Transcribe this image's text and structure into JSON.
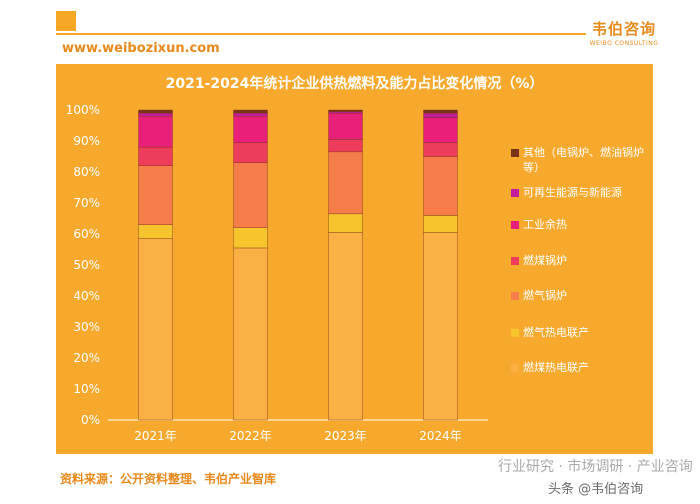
{
  "header": {
    "brand_cn": "韦伯咨询",
    "brand_en": "WEIBO CONSULTING",
    "website": "www.weibozixun.com"
  },
  "footer": {
    "source": "资料来源：公开资料整理、韦伯产业智库",
    "watermark_line1": "行业研究 · 市场调研 · 产业咨询",
    "watermark_line2": "头条 @韦伯咨询"
  },
  "colors": {
    "accent": "#f5a623",
    "panel": "#f7a92e",
    "brand": "#e8891b"
  },
  "chart_data": {
    "type": "bar",
    "stacked": true,
    "title": "2021-2024年统计企业供热燃料及能力占比变化情况（%）",
    "categories": [
      "2021年",
      "2022年",
      "2023年",
      "2024年"
    ],
    "ylim": [
      0,
      100
    ],
    "yticks": [
      "0%",
      "10%",
      "20%",
      "30%",
      "40%",
      "50%",
      "60%",
      "70%",
      "80%",
      "90%",
      "100%"
    ],
    "grid": false,
    "legend_position": "right",
    "series": [
      {
        "name": "燃煤热电联产",
        "values": [
          58.5,
          55.5,
          60.5,
          60.5
        ],
        "color": "#fbb046"
      },
      {
        "name": "燃气热电联产",
        "values": [
          4.5,
          6.5,
          6.0,
          5.5
        ],
        "color": "#f6c42d"
      },
      {
        "name": "燃气锅炉",
        "values": [
          19.0,
          21.0,
          20.0,
          19.0
        ],
        "color": "#f47d4a"
      },
      {
        "name": "燃煤锅炉",
        "values": [
          6.0,
          6.5,
          4.0,
          4.5
        ],
        "color": "#ee3d5c"
      },
      {
        "name": "工业余热",
        "values": [
          10.0,
          8.5,
          8.5,
          8.0
        ],
        "color": "#e8207a"
      },
      {
        "name": "可再生能源与新能源",
        "values": [
          1.0,
          1.0,
          0.5,
          1.5
        ],
        "color": "#c21e9a"
      },
      {
        "name": "其他（电锅炉、燃油锅炉等）",
        "values": [
          1.0,
          1.0,
          0.5,
          1.0
        ],
        "color": "#7a3516"
      }
    ]
  }
}
